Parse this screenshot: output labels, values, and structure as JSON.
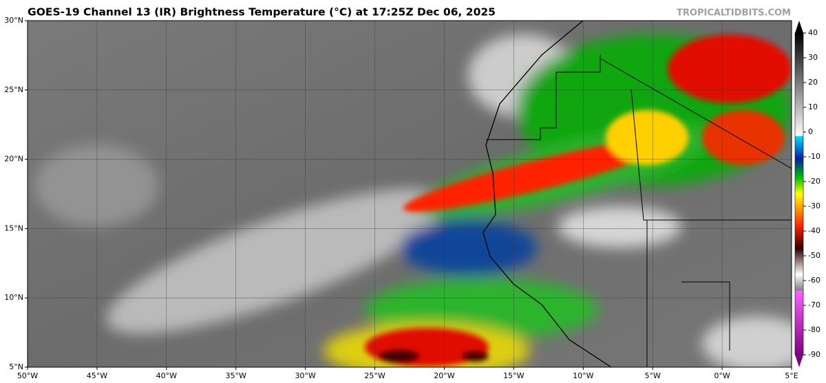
{
  "map": {
    "title": "GOES-19 Channel 13 (IR) Brightness Temperature (°C) at 17:25Z Dec 06, 2025",
    "watermark": "TROPICALTIDBITS.COM",
    "lonlim": [
      -50,
      5
    ],
    "latlim": [
      5,
      30
    ],
    "lat_ticks": [
      {
        "value": 30,
        "label": "30°N"
      },
      {
        "value": 25,
        "label": "25°N"
      },
      {
        "value": 20,
        "label": "20°N"
      },
      {
        "value": 15,
        "label": "15°N"
      },
      {
        "value": 10,
        "label": "10°N"
      },
      {
        "value": 5,
        "label": "5°N"
      }
    ],
    "lon_ticks": [
      {
        "value": -50,
        "label": "50°W"
      },
      {
        "value": -45,
        "label": "45°W"
      },
      {
        "value": -40,
        "label": "40°W"
      },
      {
        "value": -35,
        "label": "35°W"
      },
      {
        "value": -30,
        "label": "30°W"
      },
      {
        "value": -25,
        "label": "25°W"
      },
      {
        "value": -20,
        "label": "20°W"
      },
      {
        "value": -15,
        "label": "15°W"
      },
      {
        "value": -10,
        "label": "10°W"
      },
      {
        "value": -5,
        "label": "5°W"
      },
      {
        "value": 0,
        "label": "0°W"
      },
      {
        "value": 5,
        "label": "5°E"
      }
    ],
    "colorbar": {
      "lim": [
        -95,
        45
      ],
      "ticks": [
        40,
        30,
        20,
        10,
        0,
        -10,
        -20,
        -30,
        -40,
        -50,
        -60,
        -70,
        -80,
        -90
      ]
    }
  }
}
